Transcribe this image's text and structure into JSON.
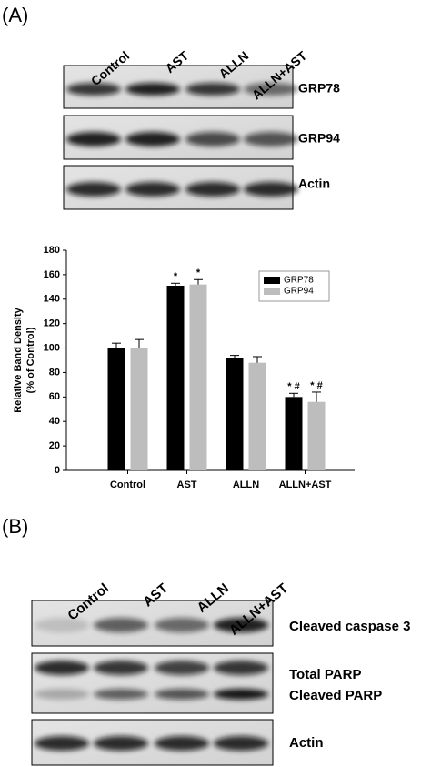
{
  "panel_a": {
    "label": "(A)",
    "lanes": [
      "Control",
      "AST",
      "ALLN",
      "ALLN+AST"
    ],
    "blots": [
      "GRP78",
      "GRP94",
      "Actin"
    ]
  },
  "chart_data": {
    "type": "bar",
    "ylabel": [
      "Relative Band Density",
      "(% of Control)"
    ],
    "categories": [
      "Control",
      "AST",
      "ALLN",
      "ALLN+AST"
    ],
    "series": [
      {
        "name": "GRP78",
        "color": "#000000",
        "values": [
          100,
          151,
          92,
          60
        ],
        "errors": [
          4,
          2,
          2,
          3
        ],
        "annotations": [
          null,
          "*",
          null,
          "* #"
        ]
      },
      {
        "name": "GRP94",
        "color": "#bdbdbd",
        "values": [
          100,
          152,
          88,
          56
        ],
        "errors": [
          7,
          4,
          5,
          8
        ],
        "annotations": [
          null,
          "*",
          null,
          "* #"
        ]
      }
    ],
    "ylim": [
      0,
      180
    ],
    "yticks": [
      0,
      20,
      40,
      60,
      80,
      100,
      120,
      140,
      160,
      180
    ],
    "grid": false,
    "legend": "upper right"
  },
  "panel_b": {
    "label": "(B)",
    "lanes": [
      "Control",
      "AST",
      "ALLN",
      "ALLN+AST"
    ],
    "blots": [
      "Cleaved caspase 3",
      "Total PARP",
      "Cleaved PARP",
      "Actin"
    ]
  }
}
